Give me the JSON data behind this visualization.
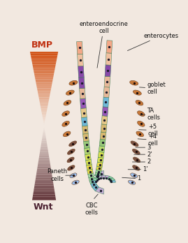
{
  "bg_color": "#f2e8e0",
  "bmp_orange": [
    0.82,
    0.32,
    0.08
  ],
  "wnt_brown": [
    0.38,
    0.2,
    0.22
  ],
  "cell_colors_by_zone": {
    "cbc": "#c4aed4",
    "paneth": "#7ab8d4",
    "stem1": "#8ecfa8",
    "stem2": "#a8d8a0",
    "ta_yellow1": "#e8d848",
    "ta_yellow2": "#d8e050",
    "ta_green1": "#b8d870",
    "ta_green2": "#98c878",
    "transit1": "#d8b870",
    "transit2": "#e8c888",
    "goblet_blue": "#70b8d8",
    "endo_purple": "#9858b8",
    "endo_purple2": "#8848a8",
    "enterocyte1": "#e8b898",
    "enterocyte2": "#f0c0a0",
    "enterocyte3": "#f4a888"
  },
  "border_color": "#3a7a54",
  "nucleus_color": "#1a1a2a",
  "label_color": "#111111",
  "outer_cell_orange": "#c87838",
  "outer_cell_brown": "#7a5040",
  "paneth_out_color": "#8aaabe",
  "label_fs": 6.0,
  "bmp_label": "BMP",
  "wnt_label": "Wnt",
  "labels": {
    "enteroendocrine_cell": [
      "enteroendocrine",
      "cell"
    ],
    "enterocytes": "enterocytes",
    "goblet_cell": [
      "goblet",
      "cell"
    ],
    "ta_cells": [
      "TA",
      "cells"
    ],
    "plus5_cell": [
      "+5",
      "cell"
    ],
    "plus4_cell": [
      "+4",
      "cell"
    ],
    "pos3": "3",
    "pos2p": "2’",
    "pos2": "2",
    "pos1p": "1’",
    "pos1": "1",
    "paneth_cells": [
      "Paneth",
      "cells"
    ],
    "cbc_cells": [
      "CBC",
      "cells"
    ]
  }
}
